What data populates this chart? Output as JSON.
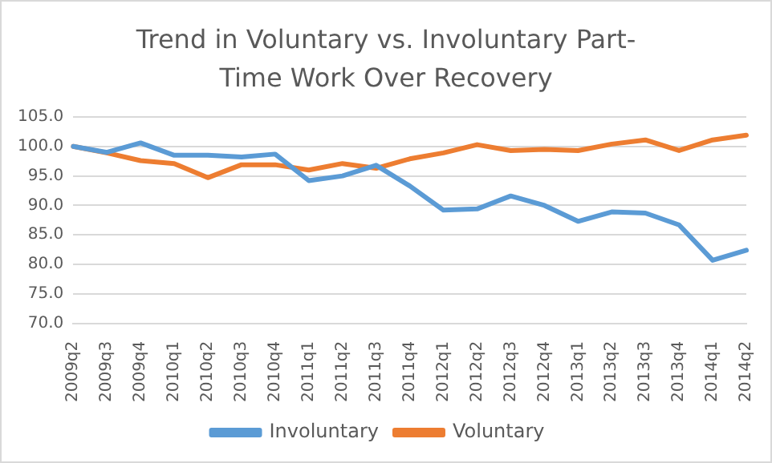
{
  "chart_data": {
    "type": "line",
    "title": "Trend in  Voluntary vs. Involuntary Part-Time Work Over Recovery",
    "categories": [
      "2009q2",
      "2009q3",
      "2009q4",
      "2010q1",
      "2010q2",
      "2010q3",
      "2010q4",
      "2011q1",
      "2011q2",
      "2011q3",
      "2011q4",
      "2012q1",
      "2012q2",
      "2012q3",
      "2012q4",
      "2013q1",
      "2013q2",
      "2013q3",
      "2013q4",
      "2014q1",
      "2014q2"
    ],
    "series": [
      {
        "name": "Involuntary",
        "color": "#5b9bd5",
        "values": [
          100,
          99.0,
          100.6,
          98.5,
          98.5,
          98.2,
          98.7,
          94.2,
          95.0,
          96.8,
          93.3,
          89.2,
          89.4,
          91.6,
          90.0,
          87.3,
          88.9,
          88.7,
          86.7,
          80.7,
          82.4
        ]
      },
      {
        "name": "Voluntary",
        "color": "#ed7d31",
        "values": [
          100,
          98.9,
          97.6,
          97.1,
          94.7,
          96.9,
          96.9,
          96.0,
          97.1,
          96.3,
          97.9,
          98.9,
          100.3,
          99.3,
          99.5,
          99.3,
          100.4,
          101.1,
          99.3,
          101.1,
          101.9
        ]
      }
    ],
    "ylim": [
      70,
      105
    ],
    "yticks": [
      {
        "value": 70,
        "label": "70.0"
      },
      {
        "value": 75,
        "label": "75.0"
      },
      {
        "value": 80,
        "label": "80.0"
      },
      {
        "value": 85,
        "label": "85.0"
      },
      {
        "value": 90,
        "label": "90.0"
      },
      {
        "value": 95,
        "label": "95.0"
      },
      {
        "value": 100,
        "label": "100.0"
      },
      {
        "value": 105,
        "label": "105.0"
      }
    ],
    "grid": "y",
    "legend": "bottom",
    "marker": "none",
    "line_style": "solid"
  }
}
